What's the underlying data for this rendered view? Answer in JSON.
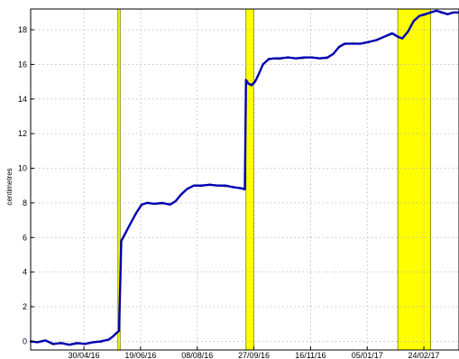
{
  "chart_data": {
    "type": "line",
    "title": "",
    "xlabel": "",
    "ylabel": "centimetres",
    "x_is_date": true,
    "xlim": [
      "2016-03-14",
      "2017-03-27"
    ],
    "ylim": [
      -0.5,
      19.2
    ],
    "yticks": [
      0,
      2,
      4,
      6,
      8,
      10,
      12,
      14,
      16,
      18
    ],
    "xticks": [
      {
        "date": "2016-04-30",
        "label": "30/04/16"
      },
      {
        "date": "2016-06-19",
        "label": "19/06/16"
      },
      {
        "date": "2016-08-08",
        "label": "08/08/16"
      },
      {
        "date": "2016-09-27",
        "label": "27/09/16"
      },
      {
        "date": "2016-11-16",
        "label": "16/11/16"
      },
      {
        "date": "2017-01-05",
        "label": "05/01/17"
      },
      {
        "date": "2017-02-24",
        "label": "24/02/17"
      }
    ],
    "grid": true,
    "colors": {
      "highlight_fill": "#ffff00",
      "highlight_edge": "#7a7a00",
      "series_main": "#0000b4",
      "series_raw": "#000000",
      "grid": "#b0b0b0"
    },
    "highlight_spans": [
      {
        "start": "2016-05-30",
        "end": "2016-06-01"
      },
      {
        "start": "2016-09-20",
        "end": "2016-09-27"
      },
      {
        "start": "2017-02-01",
        "end": "2017-03-02"
      }
    ],
    "series": [
      {
        "x": [
          "2016-03-14",
          "2016-03-20",
          "2016-03-27",
          "2016-04-03",
          "2016-04-10",
          "2016-04-17",
          "2016-04-24",
          "2016-05-01",
          "2016-05-08",
          "2016-05-15",
          "2016-05-22",
          "2016-05-26",
          "2016-05-29",
          "2016-05-31",
          "2016-06-02",
          "2016-06-06",
          "2016-06-10",
          "2016-06-15",
          "2016-06-20",
          "2016-06-25",
          "2016-07-01",
          "2016-07-08",
          "2016-07-15",
          "2016-07-20",
          "2016-07-25",
          "2016-07-30",
          "2016-08-05",
          "2016-08-12",
          "2016-08-19",
          "2016-08-26",
          "2016-09-02",
          "2016-09-09",
          "2016-09-15",
          "2016-09-19",
          "2016-09-20",
          "2016-09-22",
          "2016-09-25",
          "2016-09-28",
          "2016-10-01",
          "2016-10-05",
          "2016-10-10",
          "2016-10-15",
          "2016-10-20",
          "2016-10-27",
          "2016-11-03",
          "2016-11-10",
          "2016-11-17",
          "2016-11-24",
          "2016-12-01",
          "2016-12-06",
          "2016-12-11",
          "2016-12-16",
          "2016-12-23",
          "2016-12-30",
          "2017-01-06",
          "2017-01-13",
          "2017-01-20",
          "2017-01-27",
          "2017-02-01",
          "2017-02-05",
          "2017-02-10",
          "2017-02-15",
          "2017-02-20",
          "2017-02-25",
          "2017-03-02",
          "2017-03-07",
          "2017-03-12",
          "2017-03-17",
          "2017-03-22",
          "2017-03-27"
        ],
        "y": [
          0.0,
          -0.05,
          0.05,
          -0.15,
          -0.1,
          -0.2,
          -0.1,
          -0.15,
          -0.05,
          0.0,
          0.1,
          0.3,
          0.5,
          0.6,
          5.8,
          6.3,
          6.8,
          7.4,
          7.9,
          8.0,
          7.95,
          8.0,
          7.9,
          8.1,
          8.5,
          8.8,
          9.0,
          9.0,
          9.05,
          9.0,
          9.0,
          8.9,
          8.85,
          8.8,
          15.1,
          14.9,
          14.8,
          15.0,
          15.4,
          16.0,
          16.3,
          16.35,
          16.35,
          16.4,
          16.35,
          16.4,
          16.4,
          16.35,
          16.4,
          16.6,
          17.0,
          17.2,
          17.2,
          17.2,
          17.3,
          17.4,
          17.6,
          17.8,
          17.6,
          17.5,
          17.9,
          18.5,
          18.8,
          18.9,
          19.0,
          19.1,
          19.0,
          18.9,
          19.0,
          19.0
        ]
      }
    ]
  }
}
